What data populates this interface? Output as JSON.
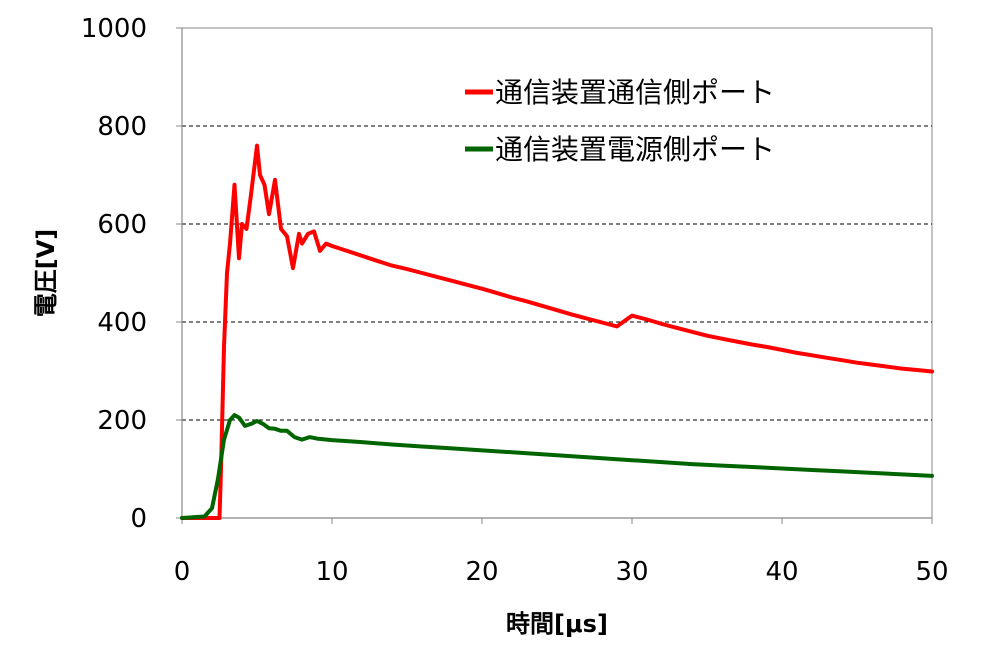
{
  "chart_data": {
    "type": "line",
    "xlabel": "時間[μs]",
    "ylabel": "電圧[V]",
    "xlim": [
      0,
      50
    ],
    "ylim": [
      0,
      1000
    ],
    "x_ticks": [
      "0",
      "10",
      "20",
      "30",
      "40",
      "50"
    ],
    "y_ticks": [
      "0",
      "200",
      "400",
      "600",
      "800",
      "1000"
    ],
    "grid": "horizontal dashed",
    "legend_position": "top-right",
    "series": [
      {
        "name": "通信装置通信側ポート",
        "color": "#ff0000",
        "x": [
          0,
          2.5,
          2.6,
          2.8,
          3.0,
          3.2,
          3.5,
          3.8,
          4.0,
          4.3,
          4.6,
          5.0,
          5.2,
          5.5,
          5.8,
          6.2,
          6.6,
          7.0,
          7.4,
          7.8,
          8.0,
          8.4,
          8.8,
          9.2,
          9.6,
          10,
          11,
          12,
          13,
          14,
          15,
          16,
          17,
          18,
          19,
          20,
          21,
          22,
          23,
          24,
          25,
          26,
          27,
          28,
          29,
          30,
          31,
          32,
          33,
          34,
          35,
          36,
          37,
          38,
          39,
          40,
          41,
          42,
          43,
          44,
          45,
          46,
          47,
          48,
          49,
          50
        ],
        "values": [
          0,
          0,
          100,
          350,
          500,
          560,
          680,
          530,
          600,
          590,
          660,
          760,
          700,
          680,
          620,
          690,
          590,
          575,
          510,
          580,
          560,
          580,
          585,
          545,
          560,
          555,
          545,
          535,
          525,
          515,
          508,
          500,
          492,
          484,
          476,
          468,
          459,
          450,
          442,
          433,
          424,
          415,
          407,
          399,
          391,
          413,
          405,
          396,
          388,
          380,
          372,
          366,
          360,
          354,
          349,
          343,
          337,
          332,
          327,
          322,
          317,
          313,
          309,
          305,
          302,
          299
        ]
      },
      {
        "name": "通信装置電源側ポート",
        "color": "#006400",
        "x": [
          0,
          1.5,
          2.0,
          2.4,
          2.8,
          3.2,
          3.5,
          3.8,
          4.2,
          4.6,
          5.0,
          5.4,
          5.8,
          6.2,
          6.6,
          7.0,
          7.5,
          8.0,
          8.5,
          9.0,
          10,
          12,
          14,
          16,
          18,
          20,
          22,
          24,
          26,
          28,
          30,
          32,
          34,
          36,
          38,
          40,
          42,
          44,
          46,
          48,
          50
        ],
        "values": [
          0,
          3,
          20,
          80,
          160,
          200,
          210,
          205,
          188,
          192,
          198,
          192,
          183,
          182,
          178,
          178,
          165,
          160,
          165,
          162,
          159,
          155,
          150,
          146,
          142,
          138,
          134,
          130,
          126,
          122,
          118,
          114,
          110,
          107,
          104,
          101,
          98,
          95,
          92,
          89,
          86
        ]
      }
    ]
  }
}
